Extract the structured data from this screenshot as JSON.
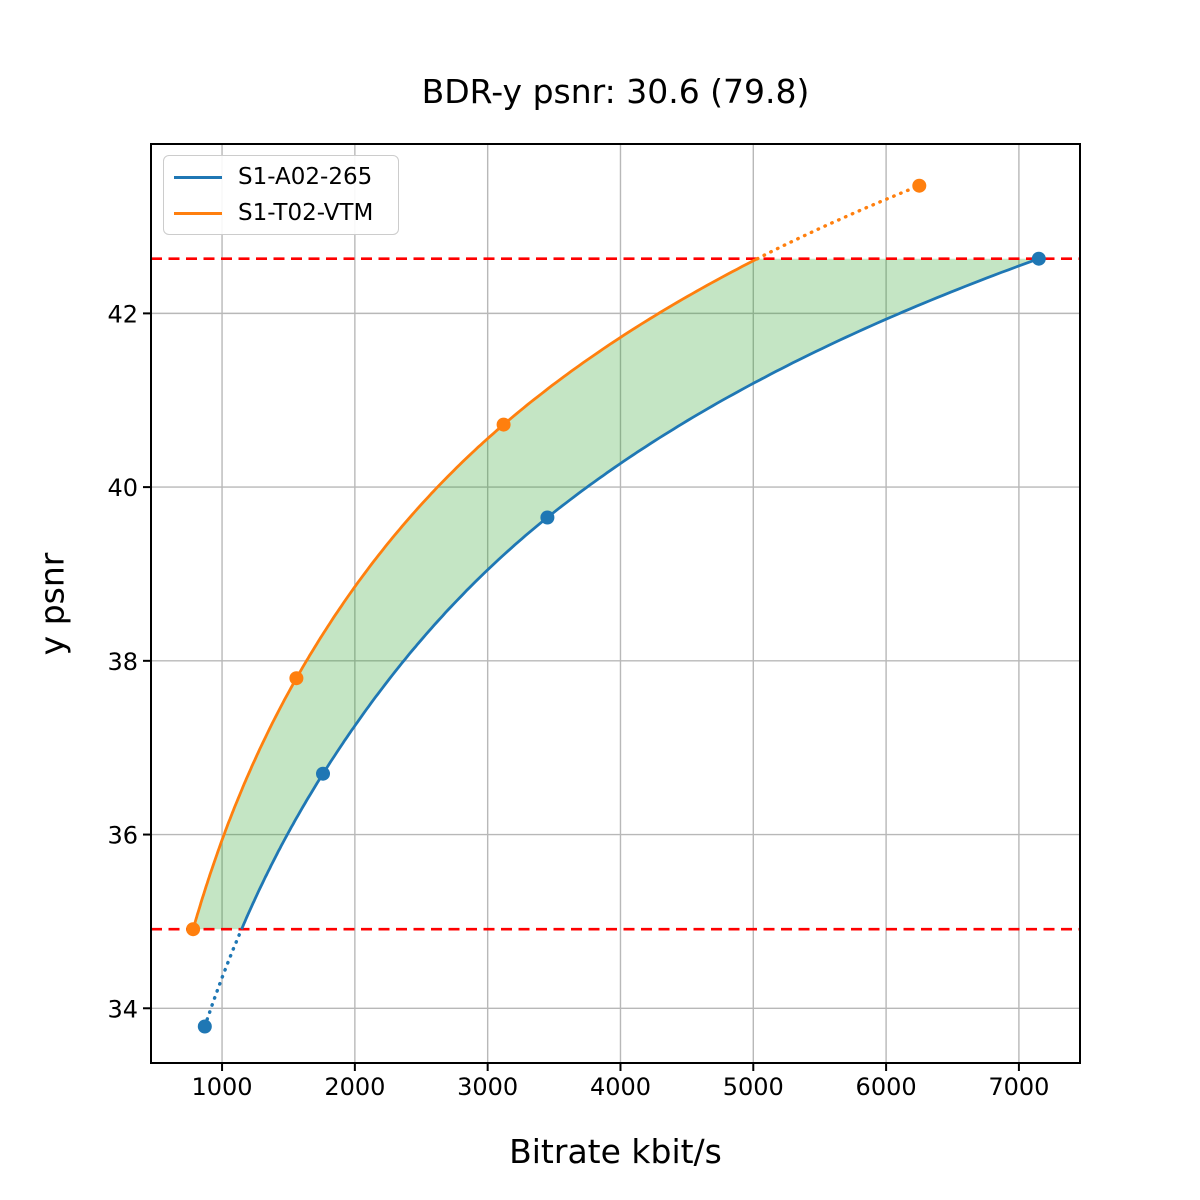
{
  "chart_data": {
    "type": "line",
    "title": "BDR-y psnr: 30.6 (79.8)",
    "xlabel": "Bitrate kbit/s",
    "ylabel": "y psnr",
    "xlim": [
      465,
      7460
    ],
    "ylim": [
      33.37,
      43.95
    ],
    "x_ticks": [
      1000,
      2000,
      3000,
      4000,
      5000,
      6000,
      7000
    ],
    "y_ticks": [
      34,
      36,
      38,
      40,
      42
    ],
    "grid": true,
    "grid_color": "#b8b8b8",
    "legend_position": "upper left",
    "series": [
      {
        "name": "S1-A02-265",
        "color": "#1f77b4",
        "points": [
          [
            870,
            33.79
          ],
          [
            1760,
            36.7
          ],
          [
            3450,
            39.65
          ],
          [
            7150,
            42.63
          ]
        ]
      },
      {
        "name": "S1-T02-VTM",
        "color": "#ff7f0e",
        "points": [
          [
            782,
            34.91
          ],
          [
            1560,
            37.8
          ],
          [
            3120,
            40.72
          ],
          [
            6250,
            43.47
          ]
        ]
      }
    ],
    "reference_lines": {
      "color": "#ff0000",
      "style": "dashed",
      "values": [
        34.91,
        42.63
      ]
    },
    "shaded_region": {
      "color": "#2ca02c",
      "opacity": 0.28,
      "description": "area between curves clipped to overlap psnr range"
    },
    "bdr_value": 30.6,
    "bdr_percent": 79.8
  }
}
